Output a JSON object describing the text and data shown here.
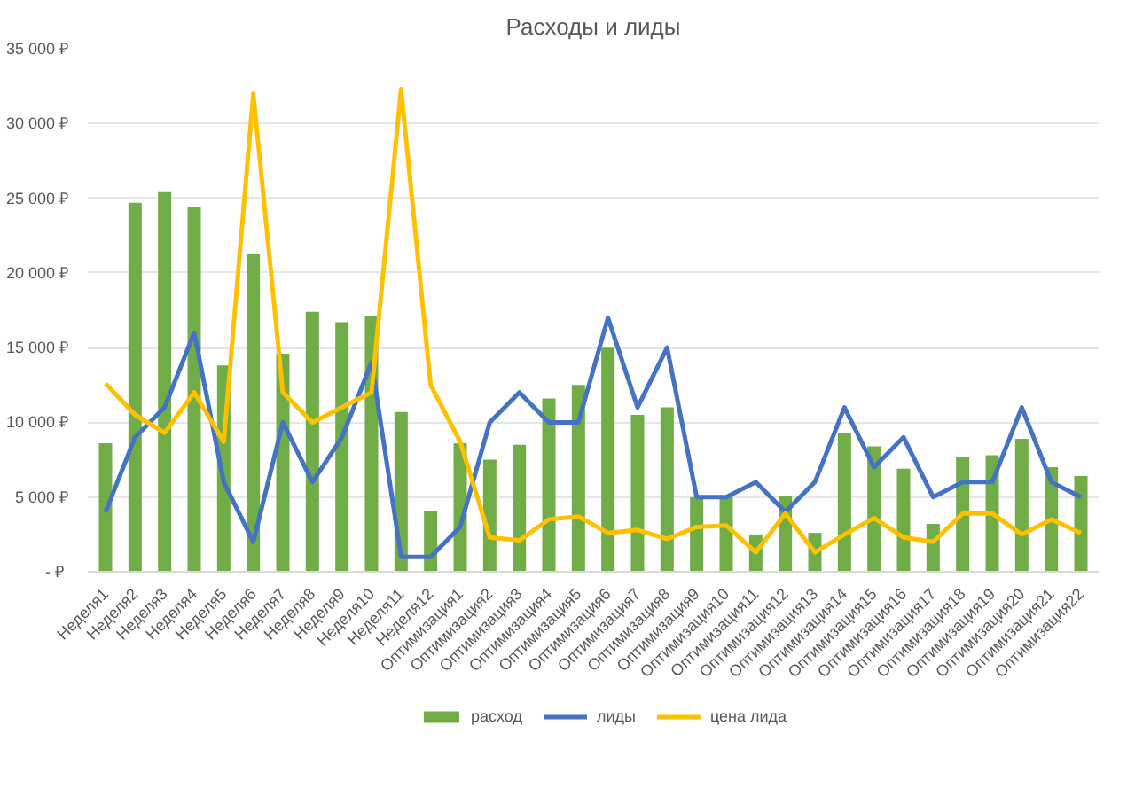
{
  "chart_data": {
    "type": "bar",
    "title": "Расходы и лиды",
    "categories": [
      "Неделя1",
      "Неделя2",
      "Неделя3",
      "Неделя4",
      "Неделя5",
      "Неделя6",
      "Неделя7",
      "Неделя8",
      "Неделя9",
      "Неделя10",
      "Неделя11",
      "Неделя12",
      "Оптимизация1",
      "Оптимизация2",
      "Оптимизация3",
      "Оптимизация4",
      "Оптимизация5",
      "Оптимизация6",
      "Оптимизация7",
      "Оптимизация8",
      "Оптимизация9",
      "Оптимизация10",
      "Оптимизация11",
      "Оптимизация12",
      "Оптимизация13",
      "Оптимизация14",
      "Оптимизация15",
      "Оптимизация16",
      "Оптимизация17",
      "Оптимизация18",
      "Оптимизация19",
      "Оптимизация20",
      "Оптимизация21",
      "Оптимизация22"
    ],
    "series": [
      {
        "name": "расход",
        "color": "#70ad47",
        "values": [
          8600,
          24700,
          25400,
          24400,
          13800,
          21300,
          14600,
          17400,
          16700,
          17100,
          10700,
          4100,
          8600,
          7500,
          8500,
          11600,
          12500,
          15000,
          10500,
          11000,
          5000,
          5100,
          2500,
          5100,
          2600,
          9300,
          8400,
          6900,
          3200,
          7700,
          7800,
          8900,
          7000,
          6400
        ]
      },
      {
        "name": "лиды",
        "type": "line",
        "color": "#4472c4",
        "values": [
          4000,
          9000,
          11000,
          16000,
          6000,
          2000,
          10000,
          6000,
          9000,
          14000,
          1000,
          1000,
          3000,
          10000,
          12000,
          10000,
          10000,
          17000,
          11000,
          15000,
          5000,
          5000,
          6000,
          4000,
          6000,
          11000,
          7000,
          9000,
          5000,
          6000,
          6000,
          11000,
          6000,
          5000
        ]
      },
      {
        "name": "цена лида",
        "type": "line",
        "color": "#ffc000",
        "values": [
          12600,
          10500,
          9300,
          12000,
          8700,
          32000,
          12000,
          10000,
          11000,
          12000,
          32300,
          12500,
          8700,
          2300,
          2100,
          3500,
          3700,
          2600,
          2800,
          2200,
          3000,
          3100,
          1300,
          3900,
          1300,
          2500,
          3600,
          2300,
          2000,
          3900,
          3900,
          2500,
          3500,
          2600
        ]
      }
    ],
    "ylim": [
      0,
      35000
    ],
    "yticks": [
      {
        "value": 0,
        "label": "-  ₽"
      },
      {
        "value": 5000,
        "label": "5 000 ₽"
      },
      {
        "value": 10000,
        "label": "10 000 ₽"
      },
      {
        "value": 15000,
        "label": "15 000 ₽"
      },
      {
        "value": 20000,
        "label": "20 000 ₽"
      },
      {
        "value": 25000,
        "label": "25 000 ₽"
      },
      {
        "value": 30000,
        "label": "30 000 ₽"
      },
      {
        "value": 35000,
        "label": "35 000 ₽"
      }
    ],
    "grid": "y",
    "legend": "bottom"
  }
}
